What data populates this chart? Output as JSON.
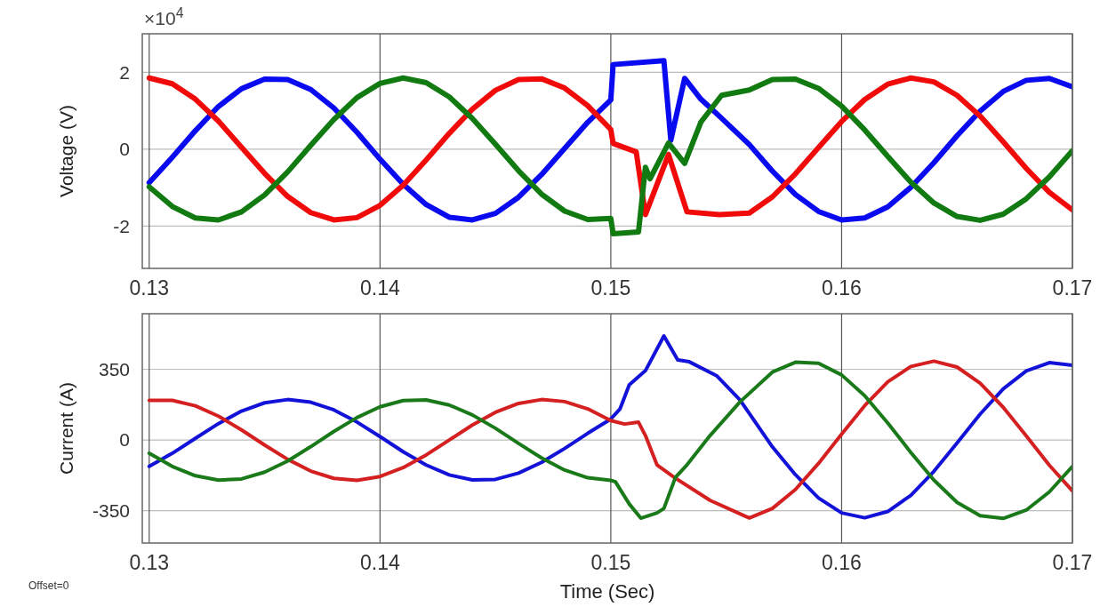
{
  "chart_data": [
    {
      "type": "line",
      "ylabel": "Voltage (V)",
      "annotations": [
        "×10$^{4}$"
      ],
      "xlim": [
        0.1297,
        0.17
      ],
      "ylim": [
        -3.1,
        3
      ],
      "xticks": [
        0.13,
        0.14,
        0.15,
        0.16,
        0.17
      ],
      "yticks": [
        -2,
        0,
        2
      ],
      "grid": true,
      "series": [
        {
          "color": "#0a0af0",
          "x": [
            0.13,
            0.131,
            0.132,
            0.133,
            0.134,
            0.135,
            0.136,
            0.137,
            0.138,
            0.139,
            0.14,
            0.141,
            0.142,
            0.143,
            0.144,
            0.145,
            0.146,
            0.147,
            0.148,
            0.149,
            0.15,
            0.1501,
            0.1523,
            0.1526,
            0.1532,
            0.1539,
            0.1547,
            0.156,
            0.157,
            0.158,
            0.159,
            0.16,
            0.161,
            0.162,
            0.163,
            0.164,
            0.165,
            0.166,
            0.167,
            0.168,
            0.169,
            0.17
          ],
          "values": [
            -0.87,
            -0.21,
            0.48,
            1.11,
            1.57,
            1.82,
            1.81,
            1.55,
            1.07,
            0.44,
            -0.26,
            -0.91,
            -1.44,
            -1.77,
            -1.84,
            -1.67,
            -1.25,
            -0.66,
            0.02,
            0.7,
            1.28,
            2.2,
            2.3,
            0.23,
            1.84,
            1.3,
            0.86,
            0.12,
            -0.57,
            -1.18,
            -1.62,
            -1.84,
            -1.79,
            -1.5,
            -0.99,
            -0.35,
            0.35,
            0.99,
            1.5,
            1.79,
            1.84,
            1.62
          ]
        },
        {
          "color": "#f00a0a",
          "x": [
            0.13,
            0.131,
            0.132,
            0.133,
            0.134,
            0.135,
            0.136,
            0.137,
            0.138,
            0.139,
            0.14,
            0.141,
            0.142,
            0.143,
            0.144,
            0.145,
            0.146,
            0.147,
            0.148,
            0.149,
            0.15,
            0.1501,
            0.1511,
            0.1515,
            0.1525,
            0.1533,
            0.1547,
            0.156,
            0.157,
            0.158,
            0.159,
            0.16,
            0.161,
            0.162,
            0.163,
            0.164,
            0.165,
            0.166,
            0.167,
            0.168,
            0.169,
            0.17
          ],
          "values": [
            1.85,
            1.7,
            1.3,
            0.73,
            0.05,
            -0.63,
            -1.23,
            -1.65,
            -1.84,
            -1.78,
            -1.46,
            -0.94,
            -0.28,
            0.41,
            1.04,
            1.53,
            1.81,
            1.83,
            1.59,
            1.13,
            0.51,
            0.15,
            -0.07,
            -1.7,
            -0.14,
            -1.63,
            -1.7,
            -1.66,
            -1.24,
            -0.64,
            0.04,
            0.72,
            1.29,
            1.69,
            1.85,
            1.75,
            1.4,
            0.86,
            0.19,
            -0.5,
            -1.12,
            -1.58
          ]
        },
        {
          "color": "#117a11",
          "x": [
            0.13,
            0.131,
            0.132,
            0.133,
            0.134,
            0.135,
            0.136,
            0.137,
            0.138,
            0.139,
            0.14,
            0.141,
            0.142,
            0.143,
            0.144,
            0.145,
            0.146,
            0.147,
            0.148,
            0.149,
            0.15,
            0.1501,
            0.1512,
            0.1515,
            0.1517,
            0.1525,
            0.1532,
            0.1539,
            0.1548,
            0.156,
            0.157,
            0.158,
            0.159,
            0.16,
            0.161,
            0.162,
            0.163,
            0.164,
            0.165,
            0.166,
            0.167,
            0.168,
            0.169,
            0.17
          ],
          "values": [
            -0.98,
            -1.49,
            -1.79,
            -1.84,
            -1.63,
            -1.19,
            -0.59,
            0.1,
            0.77,
            1.34,
            1.71,
            1.85,
            1.73,
            1.36,
            0.8,
            0.13,
            -0.56,
            -1.17,
            -1.61,
            -1.83,
            -1.8,
            -2.2,
            -2.15,
            -0.47,
            -0.77,
            0.16,
            -0.37,
            0.7,
            1.4,
            1.54,
            1.81,
            1.82,
            1.58,
            1.12,
            0.5,
            -0.19,
            -0.86,
            -1.4,
            -1.75,
            -1.85,
            -1.69,
            -1.29,
            -0.72,
            -0.04
          ]
        }
      ]
    },
    {
      "type": "line",
      "xlabel": "Time (Sec)",
      "ylabel": "Current (A)",
      "annotations": [
        "Offset=0"
      ],
      "xlim": [
        0.1297,
        0.17
      ],
      "ylim": [
        -510,
        625
      ],
      "xticks": [
        0.13,
        0.14,
        0.15,
        0.16,
        0.17
      ],
      "yticks": [
        -350,
        0,
        350
      ],
      "grid": true,
      "series": [
        {
          "color": "#1212d8",
          "x": [
            0.13,
            0.131,
            0.132,
            0.133,
            0.134,
            0.135,
            0.136,
            0.137,
            0.138,
            0.139,
            0.14,
            0.141,
            0.142,
            0.143,
            0.144,
            0.145,
            0.146,
            0.147,
            0.148,
            0.149,
            0.15,
            0.1504,
            0.1508,
            0.1515,
            0.1523,
            0.1529,
            0.1534,
            0.1546,
            0.1556,
            0.157,
            0.158,
            0.159,
            0.16,
            0.161,
            0.162,
            0.163,
            0.164,
            0.165,
            0.166,
            0.167,
            0.168,
            0.169,
            0.17
          ],
          "values": [
            -131,
            -66,
            8,
            81,
            143,
            184,
            200,
            187,
            149,
            89,
            17,
            -58,
            -124,
            -173,
            -198,
            -195,
            -164,
            -111,
            -42,
            33,
            104,
            154,
            273,
            343,
            515,
            396,
            387,
            317,
            198,
            -34,
            -172,
            -287,
            -361,
            -385,
            -354,
            -274,
            -155,
            -15,
            128,
            253,
            342,
            383,
            370
          ]
        },
        {
          "color": "#d42020",
          "x": [
            0.13,
            0.131,
            0.132,
            0.133,
            0.134,
            0.135,
            0.136,
            0.137,
            0.138,
            0.139,
            0.14,
            0.141,
            0.142,
            0.143,
            0.144,
            0.145,
            0.146,
            0.147,
            0.148,
            0.149,
            0.15,
            0.1506,
            0.1512,
            0.1515,
            0.152,
            0.1528,
            0.1543,
            0.156,
            0.157,
            0.158,
            0.159,
            0.16,
            0.161,
            0.162,
            0.163,
            0.164,
            0.165,
            0.166,
            0.167,
            0.168,
            0.169,
            0.17
          ],
          "values": [
            196,
            196,
            169,
            118,
            50,
            -25,
            -96,
            -154,
            -190,
            -200,
            -181,
            -137,
            -74,
            0,
            74,
            137,
            181,
            200,
            190,
            154,
            96,
            79,
            88,
            22,
            -123,
            -189,
            -299,
            -386,
            -339,
            -245,
            -116,
            29,
            170,
            288,
            364,
            390,
            361,
            281,
            162,
            20,
            -125,
            -252
          ]
        },
        {
          "color": "#1a7a1a",
          "x": [
            0.13,
            0.131,
            0.132,
            0.133,
            0.134,
            0.135,
            0.136,
            0.137,
            0.138,
            0.139,
            0.14,
            0.141,
            0.142,
            0.143,
            0.144,
            0.145,
            0.146,
            0.147,
            0.148,
            0.149,
            0.15,
            0.1502,
            0.1508,
            0.1513,
            0.152,
            0.1523,
            0.1528,
            0.1533,
            0.1543,
            0.1556,
            0.157,
            0.158,
            0.159,
            0.16,
            0.161,
            0.162,
            0.163,
            0.164,
            0.165,
            0.166,
            0.167,
            0.168,
            0.169,
            0.17
          ],
          "values": [
            -66,
            -131,
            -177,
            -199,
            -193,
            -159,
            -104,
            -33,
            42,
            111,
            164,
            195,
            198,
            173,
            124,
            58,
            -17,
            -89,
            -149,
            -187,
            -200,
            -207,
            -317,
            -387,
            -361,
            -339,
            -185,
            -123,
            22,
            189,
            336,
            385,
            380,
            322,
            219,
            84,
            -62,
            -199,
            -309,
            -375,
            -388,
            -347,
            -257,
            -131
          ]
        }
      ]
    }
  ]
}
